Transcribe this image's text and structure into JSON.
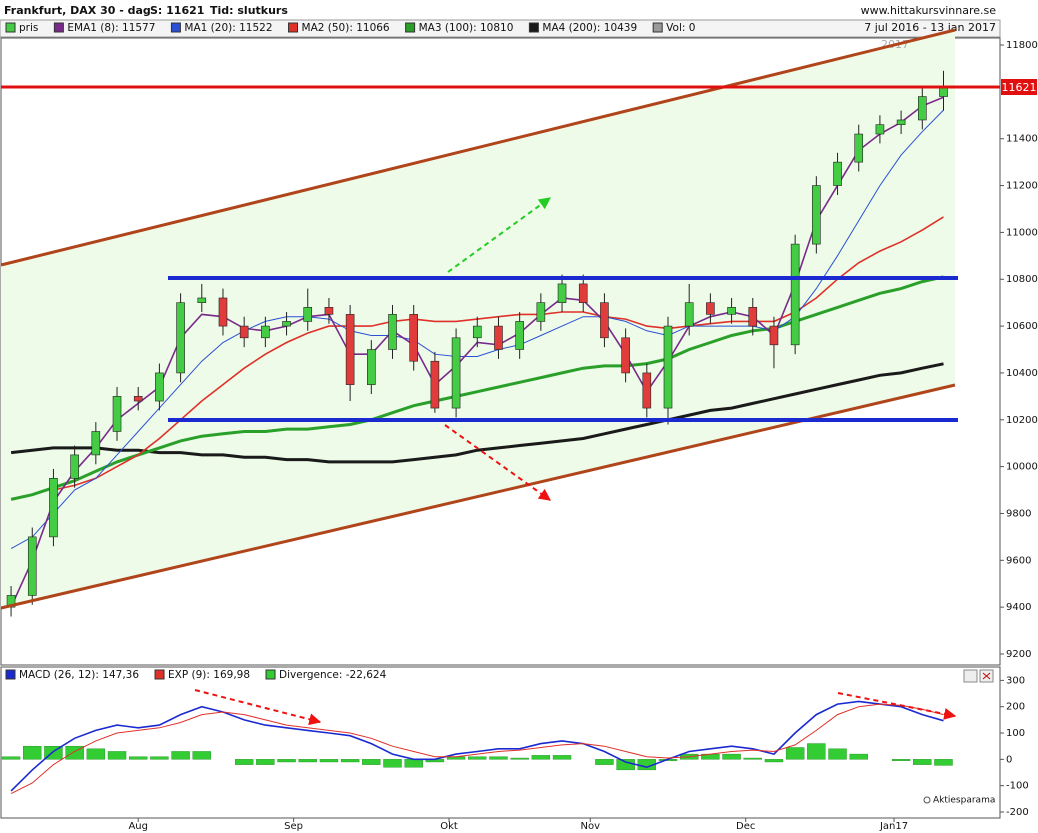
{
  "chart_data": [
    {
      "type": "candlestick",
      "title": "Frankfurt, DAX 30 - dag",
      "subtitle": "S: 11621",
      "mode": "Tid: slutkurs",
      "site": "www.hittakursvinnare.se",
      "period": "7 jul 2016 - 13 jan 2017",
      "vol_label": "Vol: 0",
      "price_tag": "11621",
      "year_mark": "2017",
      "name": "pris",
      "up_color": "#44cc44",
      "down_color": "#e03c3c",
      "x": [
        0,
        3,
        6,
        9,
        12,
        15,
        18,
        21,
        24,
        27,
        30,
        33,
        36,
        39,
        42,
        45,
        48,
        51,
        54,
        57,
        60,
        63,
        66,
        69,
        72,
        75,
        78,
        81,
        84,
        87,
        90,
        93,
        96,
        99,
        102,
        105,
        108,
        111,
        114,
        117,
        120,
        123,
        126,
        129,
        132
      ],
      "open": [
        9400,
        9450,
        9700,
        9950,
        10050,
        10150,
        10300,
        10280,
        10400,
        10700,
        10720,
        10600,
        10550,
        10600,
        10620,
        10680,
        10650,
        10350,
        10500,
        10650,
        10450,
        10250,
        10550,
        10600,
        10500,
        10620,
        10700,
        10780,
        10700,
        10550,
        10400,
        10250,
        10600,
        10700,
        10650,
        10680,
        10600,
        10520,
        10950,
        11200,
        11300,
        11420,
        11460,
        11480,
        11580
      ],
      "high": [
        9490,
        9740,
        9990,
        10090,
        10190,
        10340,
        10340,
        10440,
        10740,
        10780,
        10760,
        10640,
        10640,
        10660,
        10760,
        10720,
        10690,
        10540,
        10690,
        10690,
        10490,
        10590,
        10640,
        10640,
        10660,
        10740,
        10820,
        10820,
        10740,
        10590,
        10440,
        10640,
        10780,
        10740,
        10720,
        10720,
        10640,
        10990,
        11240,
        11340,
        11460,
        11500,
        11520,
        11620,
        11690
      ],
      "low": [
        9360,
        9410,
        9660,
        9910,
        10010,
        10110,
        10240,
        10240,
        10360,
        10660,
        10560,
        10510,
        10510,
        10560,
        10580,
        10610,
        10280,
        10310,
        10460,
        10410,
        10230,
        10210,
        10510,
        10460,
        10460,
        10580,
        10660,
        10660,
        10510,
        10360,
        10210,
        10180,
        10560,
        10610,
        10610,
        10560,
        10420,
        10480,
        10910,
        11160,
        11260,
        11380,
        11420,
        11440,
        11520
      ],
      "close": [
        9450,
        9700,
        9950,
        10050,
        10150,
        10300,
        10280,
        10400,
        10700,
        10720,
        10600,
        10550,
        10600,
        10620,
        10680,
        10650,
        10350,
        10500,
        10650,
        10450,
        10250,
        10550,
        10600,
        10500,
        10620,
        10700,
        10780,
        10700,
        10550,
        10400,
        10250,
        10600,
        10700,
        10650,
        10680,
        10600,
        10520,
        10950,
        11200,
        11300,
        11420,
        11460,
        11480,
        11580,
        11621
      ],
      "series": [
        {
          "name": "EMA1 (8): 11577",
          "color": "#7a2a8a",
          "values": [
            9400,
            9600,
            9850,
            9980,
            10080,
            10200,
            10270,
            10340,
            10550,
            10650,
            10640,
            10590,
            10580,
            10600,
            10640,
            10650,
            10480,
            10480,
            10580,
            10520,
            10350,
            10430,
            10530,
            10520,
            10570,
            10650,
            10720,
            10710,
            10620,
            10480,
            10320,
            10450,
            10600,
            10640,
            10660,
            10640,
            10560,
            10780,
            11050,
            11200,
            11350,
            11420,
            11470,
            11540,
            11577
          ]
        },
        {
          "name": "MA1 (20): 11522",
          "color": "#2a50d6",
          "values": [
            9650,
            9700,
            9800,
            9900,
            9950,
            10050,
            10150,
            10250,
            10350,
            10450,
            10530,
            10580,
            10620,
            10640,
            10640,
            10630,
            10580,
            10560,
            10560,
            10540,
            10480,
            10470,
            10470,
            10500,
            10520,
            10560,
            10600,
            10640,
            10640,
            10620,
            10580,
            10560,
            10600,
            10600,
            10600,
            10600,
            10580,
            10640,
            10760,
            10900,
            11050,
            11200,
            11330,
            11430,
            11522
          ]
        },
        {
          "name": "MA2 (50): 11066",
          "color": "#e0302a",
          "values": [
            null,
            null,
            9900,
            9920,
            9950,
            10000,
            10050,
            10120,
            10200,
            10280,
            10350,
            10420,
            10480,
            10530,
            10570,
            10600,
            10600,
            10600,
            10620,
            10630,
            10620,
            10620,
            10630,
            10640,
            10650,
            10650,
            10660,
            10660,
            10640,
            10630,
            10600,
            10590,
            10600,
            10610,
            10620,
            10620,
            10620,
            10660,
            10720,
            10800,
            10870,
            10920,
            10960,
            11010,
            11066
          ]
        },
        {
          "name": "MA3 (100): 10810",
          "color": "#2aa02a",
          "values": [
            9860,
            9880,
            9910,
            9940,
            9980,
            10020,
            10050,
            10080,
            10110,
            10130,
            10140,
            10150,
            10150,
            10160,
            10160,
            10170,
            10180,
            10200,
            10230,
            10260,
            10280,
            10300,
            10320,
            10340,
            10360,
            10380,
            10400,
            10420,
            10430,
            10430,
            10440,
            10460,
            10500,
            10530,
            10560,
            10580,
            10590,
            10620,
            10650,
            10680,
            10710,
            10740,
            10760,
            10790,
            10810
          ]
        },
        {
          "name": "MA4 (200): 10439",
          "color": "#1a1a1a",
          "values": [
            10060,
            10070,
            10080,
            10080,
            10080,
            10070,
            10070,
            10060,
            10060,
            10050,
            10050,
            10040,
            10040,
            10030,
            10030,
            10020,
            10020,
            10020,
            10020,
            10030,
            10040,
            10050,
            10070,
            10080,
            10090,
            10100,
            10110,
            10120,
            10140,
            10160,
            10180,
            10200,
            10220,
            10240,
            10250,
            10270,
            10290,
            10310,
            10330,
            10350,
            10370,
            10390,
            10400,
            10420,
            10439
          ]
        }
      ],
      "xlim": [
        -1,
        140
      ],
      "ylim": [
        9153,
        11830
      ],
      "yticks": [
        9200,
        9400,
        9600,
        9800,
        10000,
        10200,
        10400,
        10600,
        10800,
        11000,
        11200,
        11400,
        11800
      ]
    },
    {
      "type": "macd",
      "source": "Aktiesparama",
      "x": [
        0,
        3,
        6,
        9,
        12,
        15,
        18,
        21,
        24,
        27,
        30,
        33,
        36,
        39,
        42,
        45,
        48,
        51,
        54,
        57,
        60,
        63,
        66,
        69,
        72,
        75,
        78,
        81,
        84,
        87,
        90,
        93,
        96,
        99,
        102,
        105,
        108,
        111,
        114,
        117,
        120,
        123,
        126,
        129,
        132
      ],
      "series": [
        {
          "name": "MACD (26, 12): 147,36",
          "color": "#1a2ad0",
          "values": [
            -120,
            -40,
            30,
            80,
            110,
            130,
            120,
            130,
            170,
            200,
            180,
            150,
            130,
            120,
            110,
            100,
            90,
            60,
            20,
            0,
            0,
            20,
            30,
            40,
            40,
            60,
            70,
            60,
            30,
            -10,
            -30,
            0,
            30,
            40,
            50,
            40,
            20,
            100,
            170,
            210,
            220,
            210,
            200,
            170,
            147
          ]
        },
        {
          "name": "EXP (9): 169,98",
          "color": "#e0302a",
          "values": [
            -130,
            -90,
            -20,
            30,
            70,
            100,
            110,
            120,
            140,
            170,
            180,
            170,
            150,
            130,
            120,
            110,
            100,
            80,
            50,
            30,
            10,
            10,
            20,
            30,
            35,
            45,
            55,
            60,
            50,
            30,
            10,
            5,
            10,
            20,
            30,
            35,
            30,
            55,
            110,
            170,
            200,
            210,
            205,
            190,
            170
          ]
        },
        {
          "name": "Divergence: -22,624",
          "color": "#33cc33",
          "bars": true,
          "values": [
            10,
            50,
            50,
            50,
            40,
            30,
            10,
            10,
            30,
            30,
            0,
            -20,
            -20,
            -10,
            -10,
            -10,
            -10,
            -20,
            -30,
            -30,
            -10,
            10,
            10,
            10,
            5,
            15,
            15,
            0,
            -20,
            -40,
            -40,
            -5,
            20,
            20,
            20,
            5,
            -10,
            45,
            60,
            40,
            20,
            0,
            -5,
            -20,
            -23
          ]
        }
      ],
      "xlim": [
        -1,
        140
      ],
      "xticks": [
        {
          "value": 18,
          "label": "Aug"
        },
        {
          "value": 40,
          "label": "Sep"
        },
        {
          "value": 62,
          "label": "Okt"
        },
        {
          "value": 82,
          "label": "Nov"
        },
        {
          "value": 104,
          "label": "Dec"
        },
        {
          "value": 125,
          "label": "Jan17"
        }
      ],
      "ylim": [
        -219,
        347
      ],
      "yticks": [
        -200,
        -100,
        0,
        100,
        200,
        300
      ]
    }
  ]
}
